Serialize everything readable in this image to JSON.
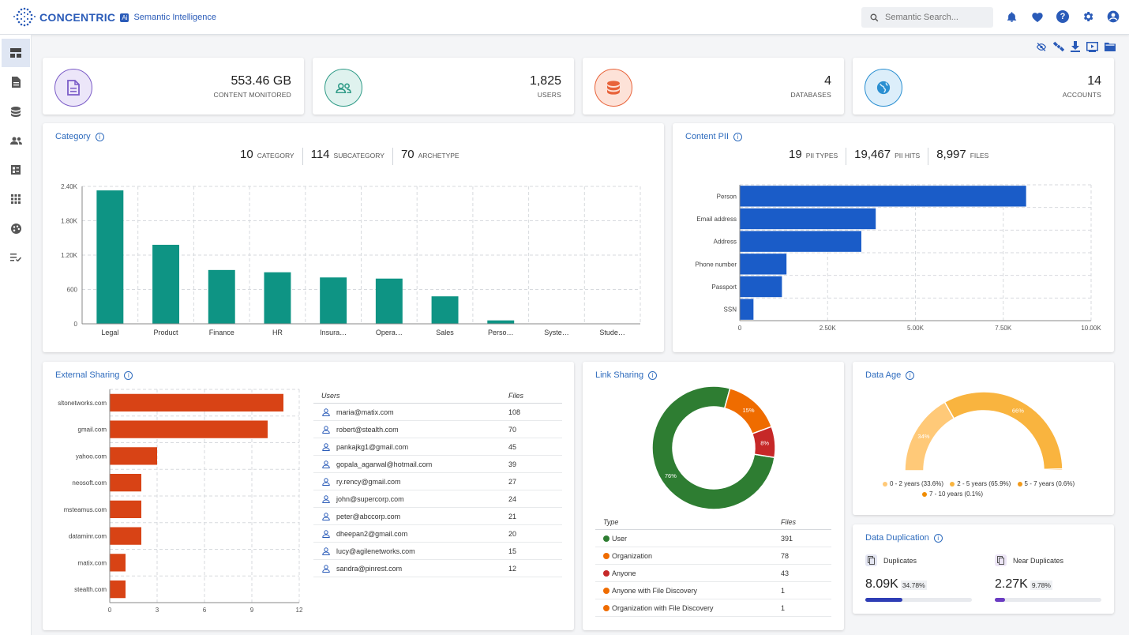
{
  "brand": {
    "name": "CONCENTRIC",
    "badge": "Ai",
    "tagline": "Semantic Intelligence"
  },
  "search": {
    "placeholder": "Semantic Search..."
  },
  "header_icons": [
    "bell-icon",
    "heart-icon",
    "help-icon",
    "gear-icon",
    "account-icon"
  ],
  "sidebar": {
    "items": [
      "dashboard-icon",
      "document-icon",
      "database-icon",
      "users-icon",
      "report-icon",
      "apps-icon",
      "palette-icon",
      "checklist-icon"
    ]
  },
  "toolbar_icons": [
    "visibility-off-icon",
    "satellite-icon",
    "download-icon",
    "slideshow-icon",
    "folder-icon"
  ],
  "kpis": [
    {
      "value": "553.46 GB",
      "label": "CONTENT MONITORED",
      "icon": "document-icon",
      "color": "#7b5cc7"
    },
    {
      "value": "1,825",
      "label": "USERS",
      "icon": "users-icon",
      "color": "#2f9b87"
    },
    {
      "value": "4",
      "label": "DATABASES",
      "icon": "database-icon",
      "color": "#e8633a"
    },
    {
      "value": "14",
      "label": "ACCOUNTS",
      "icon": "globe-icon",
      "color": "#2a8fd1"
    }
  ],
  "category": {
    "title": "Category",
    "stats": [
      {
        "value": "10",
        "label": "CATEGORY"
      },
      {
        "value": "114",
        "label": "SUBCATEGORY"
      },
      {
        "value": "70",
        "label": "ARCHETYPE"
      }
    ]
  },
  "pii": {
    "title": "Content PII",
    "stats": [
      {
        "value": "19",
        "label": "PII TYPES"
      },
      {
        "value": "19,467",
        "label": "PII HITS"
      },
      {
        "value": "8,997",
        "label": "FILES"
      }
    ]
  },
  "external": {
    "title": "External Sharing",
    "table_headers": [
      "Users",
      "Files"
    ],
    "rows": [
      {
        "user": "maria@matix.com",
        "files": "108"
      },
      {
        "user": "robert@stealth.com",
        "files": "70"
      },
      {
        "user": "pankajkg1@gmail.com",
        "files": "45"
      },
      {
        "user": "gopala_agarwal@hotmail.com",
        "files": "39"
      },
      {
        "user": "ry.rency@gmail.com",
        "files": "27"
      },
      {
        "user": "john@supercorp.com",
        "files": "24"
      },
      {
        "user": "peter@abccorp.com",
        "files": "21"
      },
      {
        "user": "dheepan2@gmail.com",
        "files": "20"
      },
      {
        "user": "lucy@agilenetworks.com",
        "files": "15"
      },
      {
        "user": "sandra@pinrest.com",
        "files": "12"
      }
    ]
  },
  "link": {
    "title": "Link Sharing",
    "table_headers": [
      "Type",
      "Files"
    ],
    "rows": [
      {
        "type": "User",
        "files": "391",
        "color": "#2e7d32"
      },
      {
        "type": "Organization",
        "files": "78",
        "color": "#ef6c00"
      },
      {
        "type": "Anyone",
        "files": "43",
        "color": "#c62828"
      },
      {
        "type": "Anyone with File Discovery",
        "files": "1",
        "color": "#ef6c00"
      },
      {
        "type": "Organization with File Discovery",
        "files": "1",
        "color": "#ef6c00"
      }
    ]
  },
  "data_age": {
    "title": "Data Age",
    "legend": [
      {
        "label": "0 - 2 years (33.6%)",
        "color": "#ffc978"
      },
      {
        "label": "2 - 5 years (65.9%)",
        "color": "#f9b43f"
      },
      {
        "label": "5 - 7 years (0.6%)",
        "color": "#f29a1a"
      },
      {
        "label": "7 - 10 years (0.1%)",
        "color": "#f08c00"
      }
    ]
  },
  "dup": {
    "title": "Data Duplication",
    "items": [
      {
        "label": "Duplicates",
        "value": "8.09K",
        "pct": "34.78%",
        "fraction": 0.3478,
        "color": "#2e3db5"
      },
      {
        "label": "Near Duplicates",
        "value": "2.27K",
        "pct": "9.78%",
        "fraction": 0.0978,
        "color": "#6a3bc2"
      }
    ]
  },
  "chart_data": [
    {
      "id": "category",
      "type": "bar",
      "categories": [
        "Legal",
        "Product",
        "Finance",
        "HR",
        "Insura…",
        "Opera…",
        "Sales",
        "Perso…",
        "Syste…",
        "Stude…"
      ],
      "values": [
        2330,
        1380,
        940,
        900,
        810,
        790,
        480,
        60,
        5,
        2
      ],
      "ylim": [
        0,
        2400
      ],
      "yticks": [
        0,
        600,
        1200,
        1800,
        2400
      ],
      "ytick_labels": [
        "0",
        "600",
        "1.20K",
        "1.80K",
        "2.40K"
      ],
      "color": "#0e9484",
      "grid": true
    },
    {
      "id": "pii",
      "type": "bar",
      "orientation": "horizontal",
      "categories": [
        "Person",
        "Email address",
        "Address",
        "Phone number",
        "Passport",
        "SSN"
      ],
      "values": [
        8150,
        3870,
        3460,
        1330,
        1200,
        390
      ],
      "xlim": [
        0,
        10000
      ],
      "xticks": [
        0,
        2500,
        5000,
        7500,
        10000
      ],
      "xtick_labels": [
        "0",
        "2.50K",
        "5.00K",
        "7.50K",
        "10.00K"
      ],
      "color": "#1a5cc8",
      "grid": true
    },
    {
      "id": "external",
      "type": "bar",
      "orientation": "horizontal",
      "categories": [
        "sltonetworks.com",
        "gmail.com",
        "yahoo.com",
        "neosoft.com",
        "msteamus.com",
        "dataminr.com",
        "matix.com",
        "stealth.com"
      ],
      "values": [
        11,
        10,
        3,
        2,
        2,
        2,
        1,
        1
      ],
      "xlim": [
        0,
        12
      ],
      "xticks": [
        0,
        3,
        6,
        9,
        12
      ],
      "xtick_labels": [
        "0",
        "3",
        "6",
        "9",
        "12"
      ],
      "color": "#d84315",
      "grid": true
    },
    {
      "id": "link",
      "type": "pie",
      "labels": [
        "User",
        "Organization",
        "Anyone"
      ],
      "values": [
        76,
        15,
        8
      ],
      "value_labels": [
        "76%",
        "15%",
        "8%"
      ],
      "colors": [
        "#2e7d32",
        "#ef6c00",
        "#c62828"
      ]
    },
    {
      "id": "age",
      "type": "pie",
      "labels": [
        "0 - 2 years",
        "2 - 5 years",
        "5 - 7 years",
        "7 - 10 years"
      ],
      "values": [
        33.6,
        65.9,
        0.6,
        0.1
      ],
      "value_labels": [
        "34%",
        "66%",
        "",
        ""
      ],
      "colors": [
        "#ffc978",
        "#f9b43f",
        "#f29a1a",
        "#f08c00"
      ]
    }
  ]
}
